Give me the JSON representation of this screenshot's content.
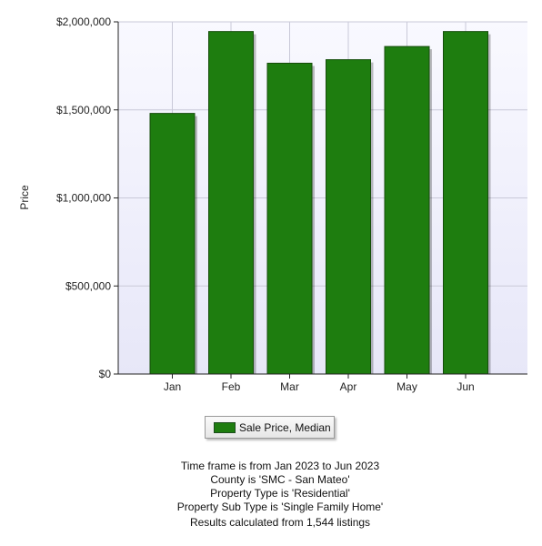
{
  "colors": {
    "bar": "#1e7d0f",
    "bar_stroke": "#164d0b",
    "plot_bg_top": "#f9f9ff",
    "plot_bg_bottom": "#e7e7f8",
    "grid": "#c9c9d8"
  },
  "chart_data": {
    "type": "bar",
    "categories": [
      "Jan",
      "Feb",
      "Mar",
      "Apr",
      "May",
      "Jun"
    ],
    "series": [
      {
        "name": "Sale Price, Median",
        "values": [
          1480000,
          1945000,
          1765000,
          1785000,
          1860000,
          1945000
        ]
      }
    ],
    "ylabel": "Price",
    "xlabel": "",
    "ylim": [
      0,
      2000000
    ],
    "yticks": [
      {
        "value": 0,
        "label": "$0"
      },
      {
        "value": 500000,
        "label": "$500,000"
      },
      {
        "value": 1000000,
        "label": "$1,000,000"
      },
      {
        "value": 1500000,
        "label": "$1,500,000"
      },
      {
        "value": 2000000,
        "label": "$2,000,000"
      }
    ],
    "grid": true,
    "legend_position": "bottom-center"
  },
  "legend": {
    "label": "Sale Price, Median"
  },
  "footer": {
    "lines": [
      "Time frame is from Jan 2023 to Jun 2023",
      "County is 'SMC - San Mateo'",
      "Property Type is 'Residential'",
      "Property Sub Type is 'Single Family Home'"
    ],
    "results": "Results calculated from 1,544 listings"
  }
}
